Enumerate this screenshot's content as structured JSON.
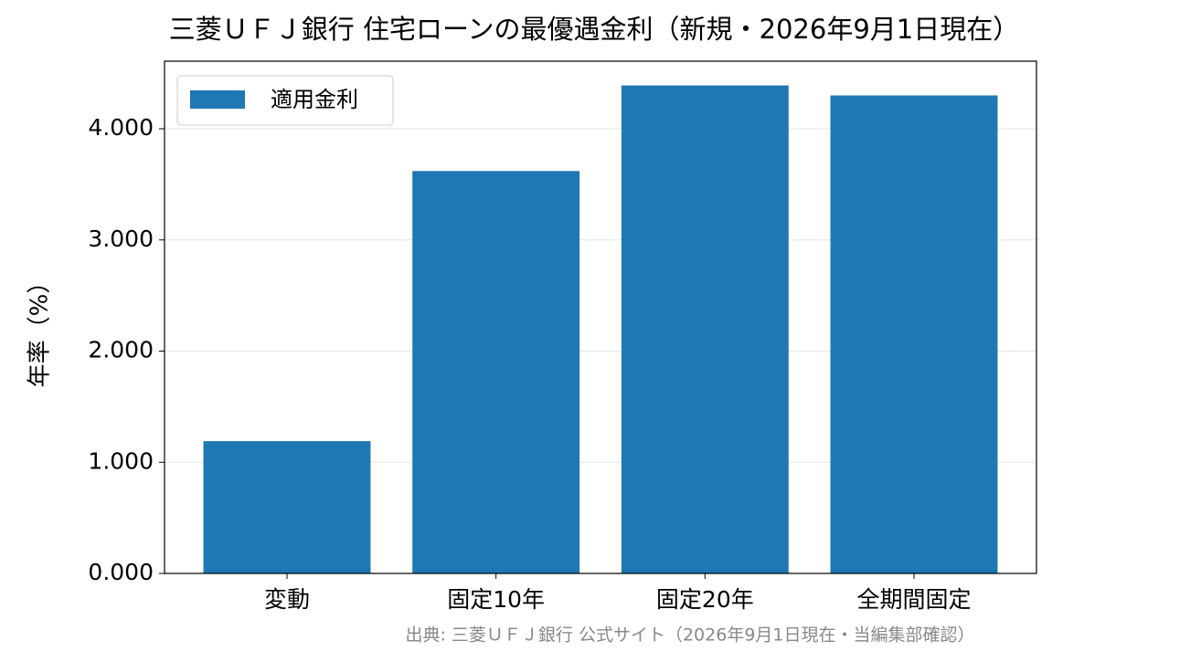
{
  "chart_data": {
    "type": "bar",
    "title": "三菱ＵＦＪ銀行 住宅ローンの最優遇金利（新規・2026年9月1日現在）",
    "y_label": "年率（%）",
    "source": "出典: 三菱ＵＦＪ銀行 公式サイト（2026年9月1日現在・当編集部確認）",
    "categories": [
      "変動",
      "固定10年",
      "固定20年",
      "全期間固定"
    ],
    "series": [
      {
        "name": "適用金利",
        "color": "#1f77b4",
        "values": [
          1.19,
          3.62,
          4.39,
          4.3
        ]
      }
    ],
    "ylim": [
      0,
      4.608
    ],
    "yticks": [
      {
        "value": 0,
        "label": "0.000"
      },
      {
        "value": 1,
        "label": "1.000"
      },
      {
        "value": 2,
        "label": "2.000"
      },
      {
        "value": 3,
        "label": "3.000"
      },
      {
        "value": 4,
        "label": "4.000"
      }
    ],
    "grid": true,
    "legend": "upper-left"
  }
}
